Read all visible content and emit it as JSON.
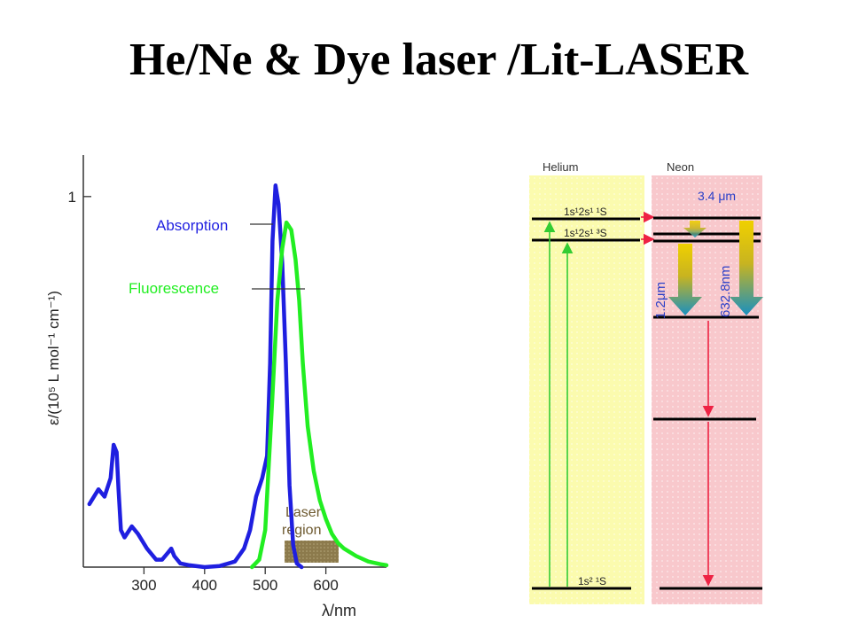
{
  "slide": {
    "title": "He/Ne & Dye laser /Lit-LASER"
  },
  "spectrum": {
    "chart_data": {
      "type": "line",
      "xlabel": "λ/nm",
      "ylabel": "ε/(10⁵ L mol⁻¹ cm⁻¹)",
      "xlim": [
        200,
        700
      ],
      "ylim": [
        0,
        1.1
      ],
      "xticks": [
        "300",
        "400",
        "500",
        "600"
      ],
      "yticks": [
        "1"
      ],
      "series": [
        {
          "name": "Absorption",
          "color": "#1f1fe0",
          "points": [
            [
              210,
              0.17
            ],
            [
              225,
              0.21
            ],
            [
              235,
              0.19
            ],
            [
              245,
              0.24
            ],
            [
              250,
              0.33
            ],
            [
              255,
              0.31
            ],
            [
              258,
              0.21
            ],
            [
              262,
              0.1
            ],
            [
              268,
              0.08
            ],
            [
              280,
              0.11
            ],
            [
              290,
              0.09
            ],
            [
              305,
              0.05
            ],
            [
              320,
              0.02
            ],
            [
              330,
              0.02
            ],
            [
              340,
              0.04
            ],
            [
              345,
              0.05
            ],
            [
              350,
              0.03
            ],
            [
              360,
              0.01
            ],
            [
              375,
              0.005
            ],
            [
              400,
              0.0
            ],
            [
              425,
              0.003
            ],
            [
              450,
              0.015
            ],
            [
              465,
              0.05
            ],
            [
              475,
              0.1
            ],
            [
              485,
              0.19
            ],
            [
              495,
              0.24
            ],
            [
              503,
              0.3
            ],
            [
              508,
              0.55
            ],
            [
              512,
              0.88
            ],
            [
              517,
              1.03
            ],
            [
              522,
              0.98
            ],
            [
              528,
              0.82
            ],
            [
              534,
              0.55
            ],
            [
              540,
              0.22
            ],
            [
              546,
              0.06
            ],
            [
              552,
              0.01
            ],
            [
              560,
              0.0
            ]
          ]
        },
        {
          "name": "Fluorescence",
          "color": "#22ee22",
          "points": [
            [
              478,
              0.0
            ],
            [
              490,
              0.02
            ],
            [
              500,
              0.1
            ],
            [
              510,
              0.4
            ],
            [
              520,
              0.72
            ],
            [
              528,
              0.86
            ],
            [
              535,
              0.93
            ],
            [
              543,
              0.91
            ],
            [
              550,
              0.83
            ],
            [
              556,
              0.72
            ],
            [
              562,
              0.55
            ],
            [
              570,
              0.38
            ],
            [
              580,
              0.26
            ],
            [
              590,
              0.18
            ],
            [
              600,
              0.13
            ],
            [
              610,
              0.09
            ],
            [
              620,
              0.065
            ],
            [
              630,
              0.05
            ],
            [
              650,
              0.03
            ],
            [
              670,
              0.015
            ],
            [
              690,
              0.008
            ],
            [
              700,
              0.005
            ]
          ]
        }
      ],
      "annotations": [
        "Laser region"
      ],
      "laser_region": [
        540,
        600
      ]
    }
  },
  "energy_diagram": {
    "columns": {
      "left": "Helium",
      "right": "Neon"
    },
    "colors": {
      "helium_bg": "#fbfbae",
      "neon_bg": "#f8c8cc",
      "pump": "#33cc33",
      "transfer": "#ee2244",
      "decay": "#ee2244"
    },
    "helium_levels": [
      "1s¹2s¹ ¹S",
      "1s¹2s¹ ³S",
      "1s² ¹S"
    ],
    "transitions": [
      "3.4 μm",
      "1.2μm",
      "632.8nm"
    ]
  }
}
